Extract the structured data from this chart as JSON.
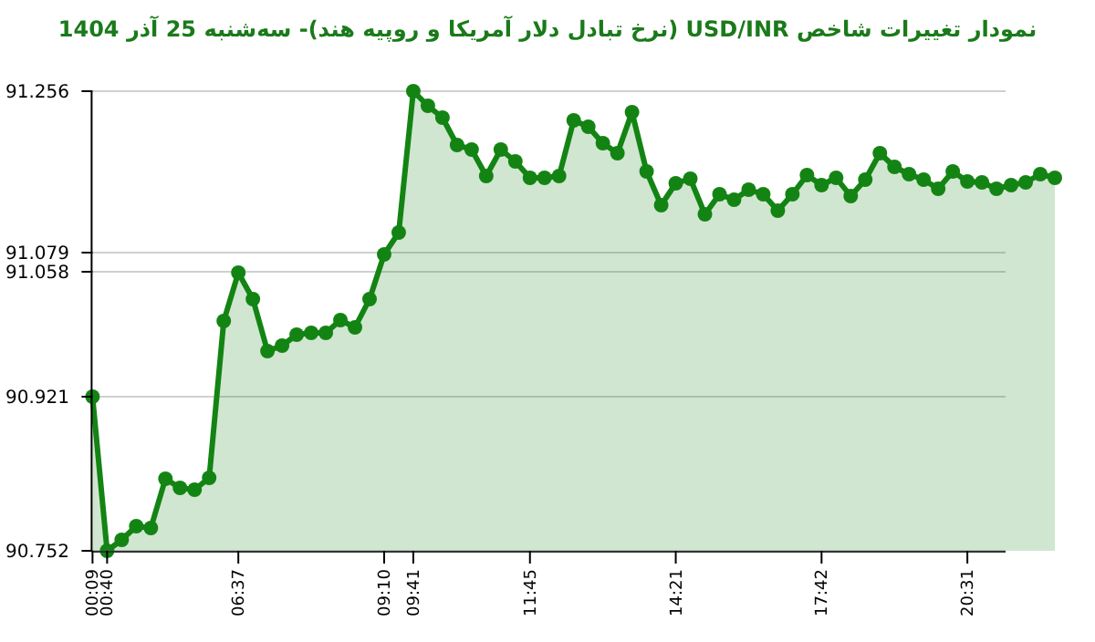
{
  "chart_data": {
    "type": "area",
    "title": "نمودار تغییرات شاخص USD/INR (نرخ تبادل دلار آمریکا و روپیه هند)- سه‌شنبه  25 آذر 1404",
    "categories": [
      "00:09",
      "00:40",
      null,
      null,
      null,
      null,
      null,
      null,
      null,
      null,
      "06:37",
      null,
      null,
      null,
      null,
      null,
      null,
      null,
      null,
      null,
      "09:10",
      null,
      "09:41",
      null,
      null,
      null,
      null,
      null,
      null,
      null,
      "11:45",
      null,
      null,
      null,
      null,
      null,
      null,
      null,
      null,
      null,
      "14:21",
      null,
      null,
      null,
      null,
      null,
      null,
      null,
      null,
      null,
      "17:42",
      null,
      null,
      null,
      null,
      null,
      null,
      null,
      null,
      null,
      "20:31",
      null,
      null,
      null,
      null,
      null,
      null
    ],
    "values": [
      90.921,
      90.752,
      90.764,
      90.779,
      90.777,
      90.831,
      90.821,
      90.819,
      90.832,
      91.004,
      91.057,
      91.028,
      90.971,
      90.977,
      90.989,
      90.991,
      90.991,
      91.005,
      90.997,
      91.028,
      91.077,
      91.101,
      91.256,
      91.24,
      91.227,
      91.197,
      91.192,
      91.163,
      91.192,
      91.179,
      91.161,
      91.161,
      91.163,
      91.224,
      91.217,
      91.199,
      91.188,
      91.233,
      91.168,
      91.131,
      91.155,
      91.16,
      91.121,
      91.143,
      91.137,
      91.148,
      91.143,
      91.125,
      91.143,
      91.164,
      91.153,
      91.161,
      91.141,
      91.159,
      91.188,
      91.173,
      91.165,
      91.159,
      91.149,
      91.168,
      91.157,
      91.156,
      91.149,
      91.153,
      91.156,
      91.165,
      91.161
    ],
    "color": "#138413",
    "ylim": [
      90.752,
      91.256
    ],
    "yticks": [
      90.752,
      90.921,
      91.058,
      91.079,
      91.256
    ],
    "grid": "y",
    "marker": "circle"
  }
}
